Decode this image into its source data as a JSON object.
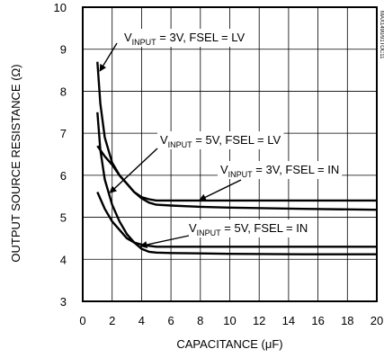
{
  "chart_data": {
    "type": "line",
    "xlabel": "CAPACITANCE (μF)",
    "ylabel": "OUTPUT SOURCE RESISTANCE (Ω)",
    "xlim": [
      0,
      20
    ],
    "ylim": [
      3,
      10
    ],
    "x_ticks": [
      "0",
      "2",
      "4",
      "6",
      "8",
      "10",
      "12",
      "14",
      "16",
      "18",
      "20"
    ],
    "y_ticks": [
      "3",
      "4",
      "5",
      "6",
      "7",
      "8",
      "9",
      "10"
    ],
    "grid": true,
    "figure_code": "MAX1490/91TOC11",
    "series": [
      {
        "name": "VINPUT = 3V, FSEL = LV",
        "label_parts": [
          "V",
          "INPUT",
          " = 3V, FSEL = LV"
        ],
        "x": [
          1.0,
          1.2,
          1.5,
          2.0,
          2.5,
          3.0,
          3.5,
          4.0,
          4.5,
          5.0,
          6.0,
          8.0,
          10.0,
          15.0,
          20.0
        ],
        "y": [
          8.7,
          7.7,
          6.9,
          6.3,
          6.0,
          5.8,
          5.6,
          5.45,
          5.35,
          5.3,
          5.28,
          5.25,
          5.23,
          5.2,
          5.18
        ]
      },
      {
        "name": "VINPUT = 5V, FSEL = LV",
        "label_parts": [
          "V",
          "INPUT",
          " = 5V, FSEL = LV"
        ],
        "x": [
          1.0,
          1.2,
          1.5,
          2.0,
          2.5,
          3.0,
          3.5,
          4.0,
          4.5,
          5.0,
          6.0,
          8.0,
          10.0,
          15.0,
          20.0
        ],
        "y": [
          7.5,
          6.6,
          5.9,
          5.3,
          4.9,
          4.6,
          4.4,
          4.25,
          4.18,
          4.16,
          4.15,
          4.14,
          4.13,
          4.12,
          4.12
        ]
      },
      {
        "name": "VINPUT = 3V, FSEL = IN",
        "label_parts": [
          "V",
          "INPUT",
          " = 3V, FSEL = IN"
        ],
        "x": [
          1.0,
          1.5,
          2.0,
          2.5,
          3.0,
          3.5,
          4.0,
          4.5,
          5.0,
          6.0,
          8.0,
          10.0,
          15.0,
          20.0
        ],
        "y": [
          6.7,
          6.45,
          6.25,
          6.0,
          5.8,
          5.6,
          5.48,
          5.43,
          5.4,
          5.4,
          5.4,
          5.4,
          5.4,
          5.4
        ]
      },
      {
        "name": "VINPUT = 5V, FSEL = IN",
        "label_parts": [
          "V",
          "INPUT",
          " = 5V, FSEL = IN"
        ],
        "x": [
          1.0,
          1.5,
          2.0,
          2.5,
          3.0,
          3.5,
          4.0,
          4.5,
          5.0,
          6.0,
          8.0,
          10.0,
          15.0,
          20.0
        ],
        "y": [
          5.6,
          5.2,
          4.9,
          4.7,
          4.5,
          4.4,
          4.35,
          4.32,
          4.3,
          4.3,
          4.3,
          4.3,
          4.3,
          4.3
        ]
      }
    ]
  }
}
